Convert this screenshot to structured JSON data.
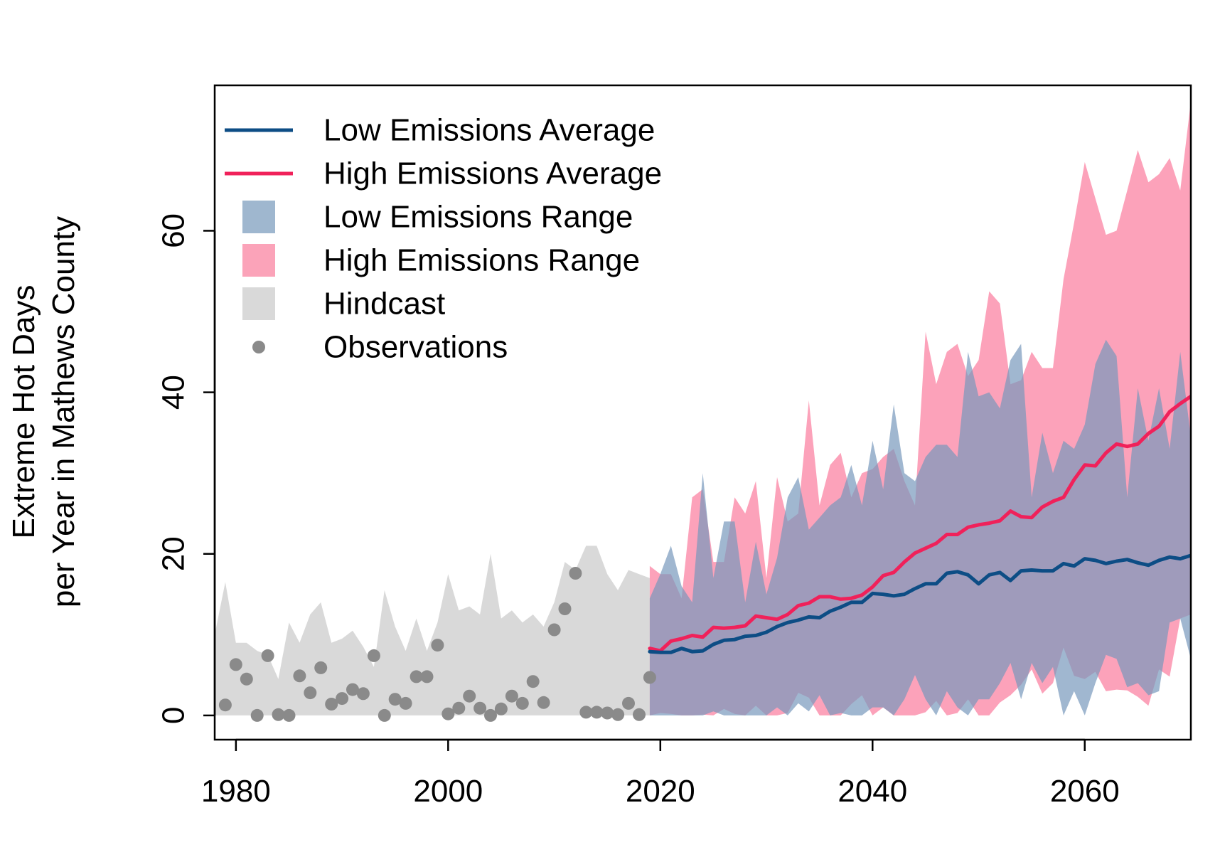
{
  "chart_data": {
    "type": "area",
    "title": "",
    "xlabel": "",
    "ylabel_lines": [
      "Extreme Hot Days",
      "per Year in Mathews County"
    ],
    "xlim": [
      1978,
      2070
    ],
    "ylim": [
      -3,
      78
    ],
    "xticks": [
      1980,
      2000,
      2020,
      2040,
      2060
    ],
    "yticks": [
      0,
      20,
      40,
      60
    ],
    "grid": false,
    "legend_position": "top-left",
    "colors": {
      "low_line": "#0d4d85",
      "high_line": "#f0215a",
      "low_range": "#7898bc",
      "high_range": "#fb7b9c",
      "hindcast": "#d9d9d9",
      "observations": "#8a8a8a"
    },
    "legend": [
      {
        "label": "Low Emissions Average",
        "kind": "line",
        "color": "#0d4d85"
      },
      {
        "label": "High Emissions Average",
        "kind": "line",
        "color": "#f0215a"
      },
      {
        "label": "Low Emissions Range",
        "kind": "box",
        "color": "#9fb7cf"
      },
      {
        "label": "High Emissions Range",
        "kind": "box",
        "color": "#fba3b9"
      },
      {
        "label": "Hindcast",
        "kind": "box",
        "color": "#d9d9d9"
      },
      {
        "label": "Observations",
        "kind": "point",
        "color": "#8a8a8a"
      }
    ],
    "hindcast": {
      "x": [
        1978,
        1979,
        1980,
        1981,
        1982,
        1983,
        1984,
        1985,
        1986,
        1987,
        1988,
        1989,
        1990,
        1991,
        1992,
        1993,
        1994,
        1995,
        1996,
        1997,
        1998,
        1999,
        2000,
        2001,
        2002,
        2003,
        2004,
        2005,
        2006,
        2007,
        2008,
        2009,
        2010,
        2011,
        2012,
        2013,
        2014,
        2015,
        2016,
        2017,
        2018,
        2019
      ],
      "upper": [
        10,
        16.5,
        9,
        9,
        8,
        7.5,
        4.5,
        11.5,
        9,
        12.5,
        14,
        9,
        9.5,
        10.5,
        8.5,
        6,
        15.5,
        11,
        8,
        12,
        8,
        11.5,
        17.5,
        13,
        13.5,
        12.5,
        20,
        12,
        13,
        11.5,
        12.5,
        11,
        14,
        19,
        18,
        21,
        21,
        17.5,
        15.5,
        18,
        17.5,
        17
      ],
      "lower": [
        0,
        0,
        0,
        0,
        0,
        0,
        0,
        0,
        0,
        0,
        0,
        0,
        0,
        0,
        0,
        0,
        0,
        0,
        0,
        0,
        0,
        0,
        0,
        0,
        0,
        0,
        0,
        0,
        0,
        0,
        0,
        0,
        0,
        0,
        0,
        0,
        0,
        0,
        0,
        0,
        0,
        0
      ]
    },
    "observations": {
      "x": [
        1979,
        1980,
        1981,
        1982,
        1983,
        1984,
        1985,
        1986,
        1987,
        1988,
        1989,
        1990,
        1991,
        1992,
        1993,
        1994,
        1995,
        1996,
        1997,
        1998,
        1999,
        2000,
        2001,
        2002,
        2003,
        2004,
        2005,
        2006,
        2007,
        2008,
        2009,
        2010,
        2011,
        2012,
        2013,
        2014,
        2015,
        2016,
        2017,
        2018,
        2019
      ],
      "y": [
        1.3,
        6.3,
        4.5,
        0,
        7.4,
        0.1,
        0,
        4.9,
        2.8,
        5.9,
        1.4,
        2.1,
        3.2,
        2.7,
        7.4,
        0,
        2,
        1.5,
        4.8,
        4.8,
        8.7,
        0.2,
        0.9,
        2.4,
        0.9,
        0,
        0.8,
        2.4,
        1.5,
        4.2,
        1.6,
        10.6,
        13.2,
        17.6,
        0.4,
        0.4,
        0.3,
        0.1,
        1.5,
        0.1,
        4.7
      ]
    },
    "high_range": {
      "x": [
        2019,
        2020,
        2021,
        2022,
        2023,
        2024,
        2025,
        2026,
        2027,
        2028,
        2029,
        2030,
        2031,
        2032,
        2033,
        2034,
        2035,
        2036,
        2037,
        2038,
        2039,
        2040,
        2041,
        2042,
        2043,
        2044,
        2045,
        2046,
        2047,
        2048,
        2049,
        2050,
        2051,
        2052,
        2053,
        2054,
        2055,
        2056,
        2057,
        2058,
        2059,
        2060,
        2061,
        2062,
        2063,
        2064,
        2065,
        2066,
        2067,
        2068,
        2069,
        2070
      ],
      "upper": [
        18.5,
        17.5,
        17.5,
        14.5,
        27,
        28,
        19,
        19,
        27,
        25,
        29,
        17,
        29.5,
        24,
        25,
        39,
        26,
        31,
        32.5,
        27,
        30,
        30.5,
        32,
        33,
        29,
        26,
        47.5,
        41,
        45,
        46,
        42,
        44,
        52.5,
        51,
        41,
        41.5,
        45,
        43,
        43,
        54,
        61,
        68.5,
        64,
        59.5,
        60,
        65,
        70,
        66,
        67,
        69,
        65,
        76
      ],
      "lower": [
        0,
        0.3,
        0.2,
        0,
        0,
        0.1,
        0,
        0.8,
        0.2,
        0,
        1.2,
        0,
        0,
        0.3,
        2.8,
        2.2,
        0,
        0,
        0,
        1.4,
        2.5,
        0,
        1,
        0,
        0,
        0,
        0.4,
        1.8,
        0,
        0.3,
        2,
        0,
        0,
        1.6,
        2.5,
        3.8,
        5.7,
        2.7,
        4,
        8.4,
        4.9,
        4.5,
        5.4,
        3,
        3.2,
        3.1,
        2.3,
        1.2,
        5.7,
        4.8,
        12,
        12.5
      ]
    },
    "low_range": {
      "x": [
        2019,
        2020,
        2021,
        2022,
        2023,
        2024,
        2025,
        2026,
        2027,
        2028,
        2029,
        2030,
        2031,
        2032,
        2033,
        2034,
        2035,
        2036,
        2037,
        2038,
        2039,
        2040,
        2041,
        2042,
        2043,
        2044,
        2045,
        2046,
        2047,
        2048,
        2049,
        2050,
        2051,
        2052,
        2053,
        2054,
        2055,
        2056,
        2057,
        2058,
        2059,
        2060,
        2061,
        2062,
        2063,
        2064,
        2065,
        2066,
        2067,
        2068,
        2069,
        2070
      ],
      "upper": [
        14.5,
        17.5,
        21,
        16,
        14,
        30,
        17,
        24,
        24,
        14,
        21.5,
        15,
        19.5,
        27,
        29.5,
        23,
        24.5,
        26,
        27,
        31,
        26,
        34,
        28,
        38.5,
        30,
        29,
        32,
        33.5,
        33.5,
        32,
        45,
        39.5,
        40,
        38,
        44,
        46,
        27,
        35,
        30,
        34,
        33,
        36,
        43.5,
        46.5,
        44.5,
        27,
        40.5,
        34,
        40.5,
        33,
        45,
        34.5
      ],
      "lower": [
        0,
        0,
        0,
        0,
        0,
        0,
        0.5,
        0,
        0,
        0,
        0,
        0,
        1,
        0,
        1.5,
        0.5,
        2.5,
        0,
        0.3,
        0,
        0,
        1,
        1,
        0,
        2,
        5,
        2,
        0,
        3,
        1,
        0,
        2,
        2,
        4,
        6.5,
        2,
        6.5,
        4,
        6,
        0,
        3,
        0,
        4,
        7.5,
        7,
        3.5,
        4,
        2.5,
        3,
        11.5,
        12,
        7
      ]
    },
    "high_avg": {
      "x": [
        2019,
        2020,
        2021,
        2022,
        2023,
        2024,
        2025,
        2026,
        2027,
        2028,
        2029,
        2030,
        2031,
        2032,
        2033,
        2034,
        2035,
        2036,
        2037,
        2038,
        2039,
        2040,
        2041,
        2042,
        2043,
        2044,
        2045,
        2046,
        2047,
        2048,
        2049,
        2050,
        2051,
        2052,
        2053,
        2054,
        2055,
        2056,
        2057,
        2058,
        2059,
        2060,
        2061,
        2062,
        2063,
        2064,
        2065,
        2066,
        2067,
        2068,
        2069,
        2070
      ],
      "y": [
        8.3,
        8,
        9.2,
        9.5,
        9.9,
        9.7,
        10.9,
        10.8,
        10.9,
        11.1,
        12.3,
        12.1,
        11.9,
        12.5,
        13.6,
        13.9,
        14.7,
        14.7,
        14.4,
        14.5,
        14.9,
        15.9,
        17.3,
        17.7,
        19,
        20.1,
        20.7,
        21.3,
        22.4,
        22.4,
        23.3,
        23.6,
        23.8,
        24.1,
        25.3,
        24.6,
        24.5,
        25.8,
        26.5,
        27,
        29.2,
        31,
        30.9,
        32.5,
        33.6,
        33.3,
        33.6,
        34.9,
        35.8,
        37.6,
        38.6,
        39.5
      ]
    },
    "low_avg": {
      "x": [
        2019,
        2020,
        2021,
        2022,
        2023,
        2024,
        2025,
        2026,
        2027,
        2028,
        2029,
        2030,
        2031,
        2032,
        2033,
        2034,
        2035,
        2036,
        2037,
        2038,
        2039,
        2040,
        2041,
        2042,
        2043,
        2044,
        2045,
        2046,
        2047,
        2048,
        2049,
        2050,
        2051,
        2052,
        2053,
        2054,
        2055,
        2056,
        2057,
        2058,
        2059,
        2060,
        2061,
        2062,
        2063,
        2064,
        2065,
        2066,
        2067,
        2068,
        2069,
        2070
      ],
      "y": [
        7.9,
        7.8,
        7.8,
        8.3,
        7.9,
        8,
        8.8,
        9.3,
        9.4,
        9.8,
        9.9,
        10.3,
        11,
        11.5,
        11.8,
        12.2,
        12.1,
        12.9,
        13.4,
        14,
        14,
        15.1,
        15,
        14.8,
        15,
        15.7,
        16.3,
        16.3,
        17.6,
        17.8,
        17.4,
        16.3,
        17.4,
        17.7,
        16.7,
        17.9,
        18,
        17.9,
        17.9,
        18.8,
        18.5,
        19.4,
        19.2,
        18.8,
        19.1,
        19.3,
        18.9,
        18.6,
        19.2,
        19.6,
        19.4,
        19.8
      ]
    }
  }
}
